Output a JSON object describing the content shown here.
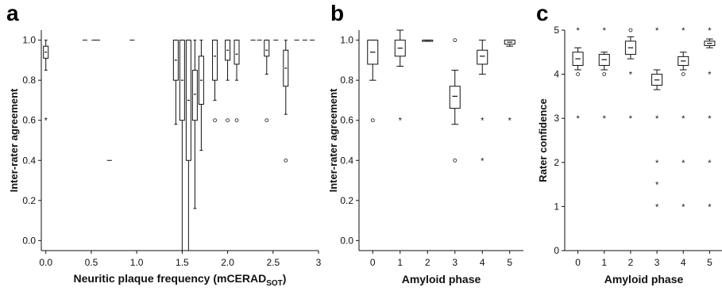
{
  "chart_data": [
    {
      "panel_label": "a",
      "type": "boxplot",
      "xlabel": "Neuritic plaque frequency (mCERAD",
      "xlabel_sub": "SOT",
      "xlabel_close": ")",
      "ylabel": "Inter-rater agreement",
      "xlim": [
        -0.05,
        3.0
      ],
      "ylim": [
        -0.05,
        1.05
      ],
      "xticks": [
        0.0,
        0.5,
        1.0,
        1.5,
        2.0,
        2.5,
        3.0
      ],
      "xtick_labels": [
        "0.0",
        "0.5",
        "1.0",
        "1.5",
        "2.0",
        "2.5",
        "3"
      ],
      "yticks": [
        0.0,
        0.2,
        0.4,
        0.6,
        0.8,
        1.0
      ],
      "ytick_labels": [
        "0.0",
        "0.2",
        "0.4",
        "0.6",
        "0.8",
        "1.0"
      ],
      "boxes": [
        {
          "x": 0.0,
          "q1": 0.91,
          "median": 0.94,
          "q3": 0.97,
          "wlo": 0.85,
          "whi": 1.0,
          "outliers": [
            0.6
          ],
          "outlier_marker": "star"
        },
        {
          "x": 1.43,
          "q1": 0.8,
          "median": 0.9,
          "q3": 1.0,
          "wlo": 0.58,
          "whi": 1.0,
          "outliers": []
        },
        {
          "x": 1.5,
          "q1": 0.6,
          "median": 0.8,
          "q3": 1.0,
          "wlo": -0.05,
          "whi": 1.0,
          "outliers": []
        },
        {
          "x": 1.57,
          "q1": 0.4,
          "median": 0.7,
          "q3": 1.0,
          "wlo": -0.05,
          "whi": 1.0,
          "outliers": []
        },
        {
          "x": 1.64,
          "q1": 0.6,
          "median": 0.73,
          "q3": 0.85,
          "wlo": 0.16,
          "whi": 1.0,
          "outliers": []
        },
        {
          "x": 1.71,
          "q1": 0.68,
          "median": 0.8,
          "q3": 0.92,
          "wlo": 0.45,
          "whi": 1.0,
          "outliers": []
        },
        {
          "x": 1.86,
          "q1": 0.8,
          "median": 0.92,
          "q3": 1.0,
          "wlo": 0.7,
          "whi": 1.0,
          "outliers": [
            0.6
          ],
          "outlier_marker": "circle"
        },
        {
          "x": 2.0,
          "q1": 0.9,
          "median": 0.95,
          "q3": 1.0,
          "wlo": 0.8,
          "whi": 1.0,
          "outliers": [
            0.6
          ],
          "outlier_marker": "circle"
        },
        {
          "x": 2.1,
          "q1": 0.88,
          "median": 0.93,
          "q3": 1.0,
          "wlo": 0.8,
          "whi": 1.0,
          "outliers": [
            0.6
          ],
          "outlier_marker": "circle"
        },
        {
          "x": 2.43,
          "q1": 0.92,
          "median": 0.95,
          "q3": 1.0,
          "wlo": 0.83,
          "whi": 1.0,
          "outliers": [
            0.6
          ],
          "outlier_marker": "circle"
        },
        {
          "x": 2.64,
          "q1": 0.77,
          "median": 0.86,
          "q3": 0.95,
          "wlo": 0.63,
          "whi": 1.0,
          "outliers": [
            0.4
          ],
          "outlier_marker": "circle"
        }
      ],
      "flat_segments": [
        {
          "x": 0.43,
          "y": 1.0
        },
        {
          "x": 0.53,
          "y": 1.0
        },
        {
          "x": 0.57,
          "y": 1.0
        },
        {
          "x": 0.95,
          "y": 1.0
        },
        {
          "x": 0.7,
          "y": 0.4
        },
        {
          "x": 2.28,
          "y": 1.0
        },
        {
          "x": 2.35,
          "y": 1.0
        },
        {
          "x": 2.53,
          "y": 1.0
        },
        {
          "x": 2.76,
          "y": 1.0
        },
        {
          "x": 2.85,
          "y": 1.0
        },
        {
          "x": 2.93,
          "y": 1.0
        }
      ]
    },
    {
      "panel_label": "b",
      "type": "boxplot",
      "xlabel": "Amyloid phase",
      "ylabel": "Inter-rater agreement",
      "xlim": [
        -0.5,
        5.5
      ],
      "ylim": [
        -0.05,
        1.05
      ],
      "xticks": [
        0,
        1,
        2,
        3,
        4,
        5
      ],
      "xtick_labels": [
        "0",
        "1",
        "2",
        "3",
        "4",
        "5"
      ],
      "yticks": [
        0.0,
        0.2,
        0.4,
        0.6,
        0.8,
        1.0
      ],
      "ytick_labels": [
        "0.0",
        "0.2",
        "0.4",
        "0.6",
        "0.8",
        "1.0"
      ],
      "boxes": [
        {
          "x": 0,
          "q1": 0.88,
          "median": 0.94,
          "q3": 1.0,
          "wlo": 0.8,
          "whi": 1.0,
          "outliers": [
            0.6
          ],
          "outlier_marker": "circle"
        },
        {
          "x": 1,
          "q1": 0.92,
          "median": 0.96,
          "q3": 1.0,
          "wlo": 0.87,
          "whi": 1.05,
          "outliers": [
            0.6
          ],
          "outlier_marker": "star"
        },
        {
          "x": 2,
          "q1": 1.0,
          "median": 1.0,
          "q3": 1.0,
          "wlo": 1.0,
          "whi": 1.0,
          "outliers": []
        },
        {
          "x": 3,
          "q1": 0.66,
          "median": 0.72,
          "q3": 0.77,
          "wlo": 0.58,
          "whi": 0.85,
          "outliers": [
            1.0,
            0.4
          ],
          "outlier_marker": "circle"
        },
        {
          "x": 4,
          "q1": 0.88,
          "median": 0.92,
          "q3": 0.95,
          "wlo": 0.83,
          "whi": 1.0,
          "outliers": [
            0.6,
            0.4
          ],
          "outlier_marker": "star"
        },
        {
          "x": 5,
          "q1": 0.98,
          "median": 0.99,
          "q3": 1.0,
          "wlo": 0.97,
          "whi": 1.0,
          "outliers": [
            0.6
          ],
          "outlier_marker": "star"
        }
      ]
    },
    {
      "panel_label": "c",
      "type": "boxplot",
      "xlabel": "Amyloid phase",
      "ylabel": "Rater confidence",
      "xlim": [
        -0.5,
        5.5
      ],
      "ylim": [
        0,
        5
      ],
      "xticks": [
        0,
        1,
        2,
        3,
        4,
        5
      ],
      "xtick_labels": [
        "0",
        "1",
        "2",
        "3",
        "4",
        "5"
      ],
      "yticks": [
        0,
        1,
        2,
        3,
        4,
        5
      ],
      "ytick_labels": [
        "0",
        "1",
        "2",
        "3",
        "4",
        "5"
      ],
      "boxes": [
        {
          "x": 0,
          "q1": 4.2,
          "median": 4.35,
          "q3": 4.5,
          "wlo": 4.1,
          "whi": 4.6,
          "outliers": [
            4.0
          ],
          "outlier_marker": "circle",
          "stars": [
            5,
            3
          ]
        },
        {
          "x": 1,
          "q1": 4.2,
          "median": 4.33,
          "q3": 4.45,
          "wlo": 4.1,
          "whi": 4.5,
          "outliers": [
            4.0
          ],
          "outlier_marker": "circle",
          "stars": [
            5,
            3
          ]
        },
        {
          "x": 2,
          "q1": 4.45,
          "median": 4.6,
          "q3": 4.75,
          "wlo": 4.35,
          "whi": 4.85,
          "outliers": [
            5.0
          ],
          "outlier_marker": "circle",
          "stars": [
            4,
            3
          ]
        },
        {
          "x": 3,
          "q1": 3.75,
          "median": 3.87,
          "q3": 4.0,
          "wlo": 3.65,
          "whi": 4.1,
          "outliers": [],
          "stars": [
            5,
            3,
            2,
            1.5,
            1
          ]
        },
        {
          "x": 4,
          "q1": 4.2,
          "median": 4.3,
          "q3": 4.4,
          "wlo": 4.1,
          "whi": 4.5,
          "outliers": [
            4.0
          ],
          "outlier_marker": "circle",
          "stars": [
            5,
            3,
            2,
            1
          ]
        },
        {
          "x": 5,
          "q1": 4.65,
          "median": 4.7,
          "q3": 4.75,
          "wlo": 4.6,
          "whi": 4.8,
          "outliers": [],
          "stars": [
            5,
            4,
            3,
            2,
            1
          ]
        }
      ]
    }
  ]
}
